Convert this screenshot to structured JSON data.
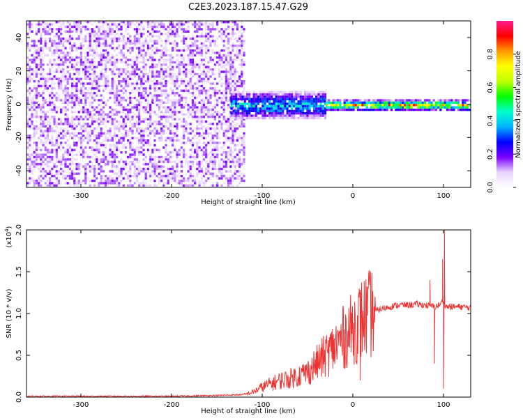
{
  "figure_title": "C2E3.2023.187.15.47.G29",
  "colors": {
    "snr_line": "#ee3333",
    "axis": "#000000",
    "spectrogram_background": "#ffffff"
  },
  "chart_data": [
    {
      "type": "heatmap",
      "title": "C2E3.2023.187.15.47.G29",
      "xlabel": "Height of straight line (km)",
      "ylabel": "Frequency (Hz)",
      "xlim": [
        -360,
        130
      ],
      "ylim": [
        -50,
        50
      ],
      "x_ticks": [
        -300,
        -200,
        -100,
        0,
        100
      ],
      "x_tick_labels": [
        "-300",
        "-200",
        "-100",
        "0",
        "100"
      ],
      "y_ticks": [
        -40,
        -20,
        0,
        20,
        40
      ],
      "y_tick_labels": [
        "-40",
        "-20",
        "0",
        "20",
        "40"
      ],
      "colorbar": {
        "label": "Normalized spectral amplitude",
        "range": [
          0,
          1
        ],
        "ticks": [
          0,
          0.2,
          0.4,
          0.6,
          0.8
        ],
        "tick_labels": [
          "0.0",
          "0.2",
          "0.4",
          "0.6",
          "0.8"
        ],
        "colormap": [
          "#ffffff",
          "#e8d4ff",
          "#7a00ff",
          "#0000ff",
          "#00b4ff",
          "#00ffcc",
          "#00ff00",
          "#bfff00",
          "#ffff00",
          "#ff9900",
          "#ff0000",
          "#ff1a8c"
        ]
      },
      "regions": [
        {
          "x_range": [
            -360,
            -120
          ],
          "freq_spread_hz": 50,
          "amplitude": 0.15,
          "description_type": "noise"
        },
        {
          "x_range": [
            -135,
            -30
          ],
          "freq_spread_hz": 8,
          "amplitude": 0.45,
          "description_type": "signal"
        },
        {
          "x_range": [
            -30,
            130
          ],
          "freq_spread_hz": 3,
          "amplitude": 0.8,
          "description_type": "signal"
        }
      ]
    },
    {
      "type": "line",
      "title": "",
      "xlabel": "Height of straight line (km)",
      "ylabel": "SNR (10 * v/v)",
      "y_scale_label": "(x10",
      "y_scale_exponent": "4",
      "y_scale_close": ")",
      "xlim": [
        -360,
        130
      ],
      "ylim": [
        0,
        2.0
      ],
      "x_ticks": [
        -300,
        -200,
        -100,
        0,
        100
      ],
      "x_tick_labels": [
        "-300",
        "-200",
        "-100",
        "0",
        "100"
      ],
      "y_ticks": [
        0,
        0.5,
        1.0,
        1.5,
        2.0
      ],
      "y_tick_labels": [
        "0.0",
        "0.5",
        "1.0",
        "1.5",
        "2.0"
      ],
      "grid": false,
      "series": [
        {
          "x": [
            -360,
            -300,
            -200,
            -150,
            -120,
            -110,
            -100,
            -90,
            -80,
            -70,
            -60,
            -50,
            -40,
            -30,
            -20,
            -10,
            0,
            10,
            20,
            30,
            40,
            50,
            60,
            70,
            80,
            90,
            95,
            100,
            103,
            110,
            120,
            130
          ],
          "y": [
            0.01,
            0.01,
            0.01,
            0.02,
            0.03,
            0.06,
            0.12,
            0.16,
            0.2,
            0.22,
            0.26,
            0.3,
            0.4,
            0.5,
            0.6,
            0.72,
            0.82,
            0.93,
            1.0,
            1.05,
            1.08,
            1.1,
            1.1,
            1.11,
            1.1,
            1.08,
            1.1,
            1.15,
            1.08,
            1.08,
            1.08,
            1.07
          ],
          "spikes": [
            {
              "x": 7,
              "y": 1.3
            },
            {
              "x": 8,
              "y": 0.2
            },
            {
              "x": 85,
              "y": 1.4
            },
            {
              "x": 90,
              "y": 0.4
            },
            {
              "x": 99,
              "y": 1.65
            },
            {
              "x": 100,
              "y": 0.1
            },
            {
              "x": 101,
              "y": 2.0
            }
          ]
        }
      ]
    }
  ]
}
